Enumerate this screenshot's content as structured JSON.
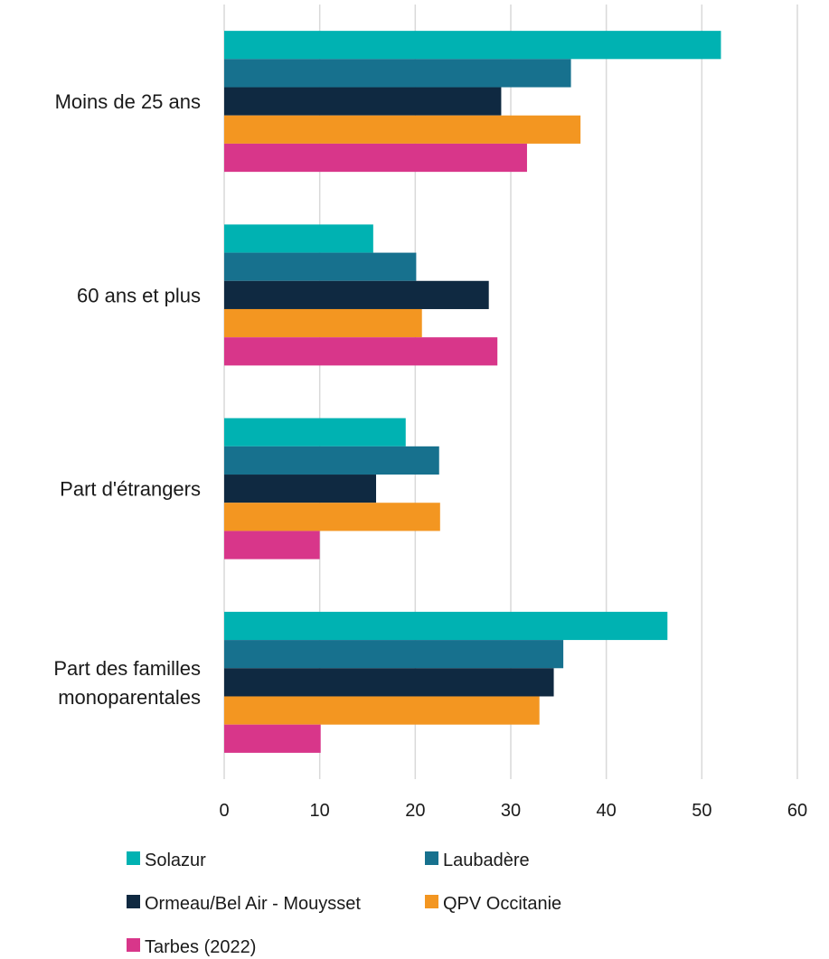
{
  "chart_data": {
    "type": "bar",
    "orientation": "horizontal",
    "categories": [
      "Moins de 25 ans",
      "60 ans et plus",
      "Part d'étrangers",
      "Part des familles monoparentales"
    ],
    "category_lines": [
      [
        "Moins de 25 ans"
      ],
      [
        "60 ans et plus"
      ],
      [
        "Part d'étrangers"
      ],
      [
        "Part des familles",
        "monoparentales"
      ]
    ],
    "series": [
      {
        "name": "Solazur",
        "color": "#00b2b2",
        "values": [
          52.0,
          15.6,
          19.0,
          46.4
        ]
      },
      {
        "name": "Laubadère",
        "color": "#17718e",
        "values": [
          36.3,
          20.1,
          22.5,
          35.5
        ]
      },
      {
        "name": "Ormeau/Bel Air - Mouysset",
        "color": "#0f2941",
        "values": [
          29.0,
          27.7,
          15.9,
          34.5
        ]
      },
      {
        "name": "QPV Occitanie",
        "color": "#f39621",
        "values": [
          37.3,
          20.7,
          22.6,
          33.0
        ]
      },
      {
        "name": "Tarbes (2022)",
        "color": "#d8368a",
        "values": [
          31.7,
          28.6,
          10.0,
          10.1
        ]
      }
    ],
    "x_ticks": [
      "0",
      "10",
      "20",
      "30",
      "40",
      "50",
      "60"
    ],
    "xlim": [
      0,
      60
    ],
    "grid": true,
    "legend_position": "bottom",
    "title": "",
    "xlabel": "",
    "ylabel": ""
  }
}
